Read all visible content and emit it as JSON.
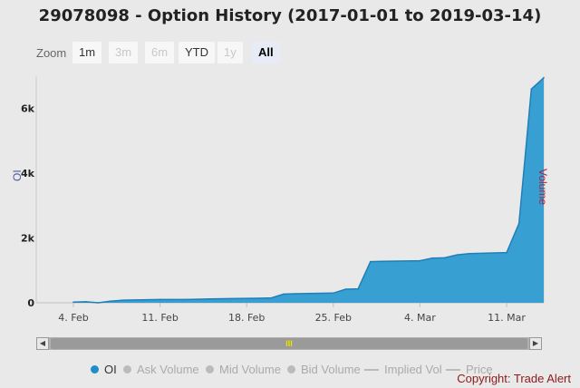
{
  "title": "29078098 - Option History (2017-01-01 to 2019-03-14)",
  "zoom": {
    "label": "Zoom",
    "buttons": [
      {
        "label": "1m",
        "state": "enabled"
      },
      {
        "label": "3m",
        "state": "disabled"
      },
      {
        "label": "6m",
        "state": "disabled"
      },
      {
        "label": "YTD",
        "state": "enabled"
      },
      {
        "label": "1y",
        "state": "disabled"
      },
      {
        "label": "All",
        "state": "active"
      }
    ]
  },
  "navigator": {
    "grip": "III"
  },
  "legend": [
    {
      "label": "OI",
      "color": "#1f8dc9",
      "marker": "dot",
      "active": true
    },
    {
      "label": "Ask Volume",
      "color": "#bbbbbb",
      "marker": "dot",
      "active": false
    },
    {
      "label": "Mid Volume",
      "color": "#bbbbbb",
      "marker": "dot",
      "active": false
    },
    {
      "label": "Bid Volume",
      "color": "#bbbbbb",
      "marker": "dot",
      "active": false
    },
    {
      "label": "Implied Vol",
      "color": "#bbbbbb",
      "marker": "line",
      "active": false
    },
    {
      "label": "Price",
      "color": "#bbbbbb",
      "marker": "line",
      "active": false
    }
  ],
  "credit": "Copyright: Trade Alert",
  "chart_data": {
    "type": "area",
    "title": "29078098 - Option History (2017-01-01 to 2019-03-14)",
    "ylabel_left": "OI",
    "ylabel_right": "Volume",
    "yticks": [
      0,
      2000,
      4000,
      6000
    ],
    "ytick_labels": [
      "0",
      "2k",
      "4k",
      "6k"
    ],
    "xticks": [
      "2019-02-04",
      "2019-02-11",
      "2019-02-18",
      "2019-02-25",
      "2019-03-04",
      "2019-03-11"
    ],
    "xtick_labels": [
      "4. Feb",
      "11. Feb",
      "18. Feb",
      "25. Feb",
      "4. Mar",
      "11. Mar"
    ],
    "ylim": [
      0,
      7000
    ],
    "xlim": [
      "2019-02-01",
      "2019-03-14"
    ],
    "grid": false,
    "series": [
      {
        "name": "OI",
        "color": "#2e9bd2",
        "x": [
          "2019-02-04",
          "2019-02-05",
          "2019-02-06",
          "2019-02-07",
          "2019-02-08",
          "2019-02-11",
          "2019-02-12",
          "2019-02-13",
          "2019-02-14",
          "2019-02-15",
          "2019-02-19",
          "2019-02-20",
          "2019-02-21",
          "2019-02-22",
          "2019-02-25",
          "2019-02-26",
          "2019-02-27",
          "2019-02-28",
          "2019-03-01",
          "2019-03-04",
          "2019-03-05",
          "2019-03-06",
          "2019-03-07",
          "2019-03-08",
          "2019-03-11",
          "2019-03-12",
          "2019-03-13",
          "2019-03-14"
        ],
        "values": [
          20,
          30,
          0,
          50,
          80,
          100,
          100,
          100,
          110,
          120,
          140,
          150,
          270,
          280,
          300,
          420,
          430,
          1270,
          1280,
          1300,
          1380,
          1390,
          1480,
          1520,
          1550,
          2450,
          6600,
          6950
        ]
      }
    ]
  }
}
